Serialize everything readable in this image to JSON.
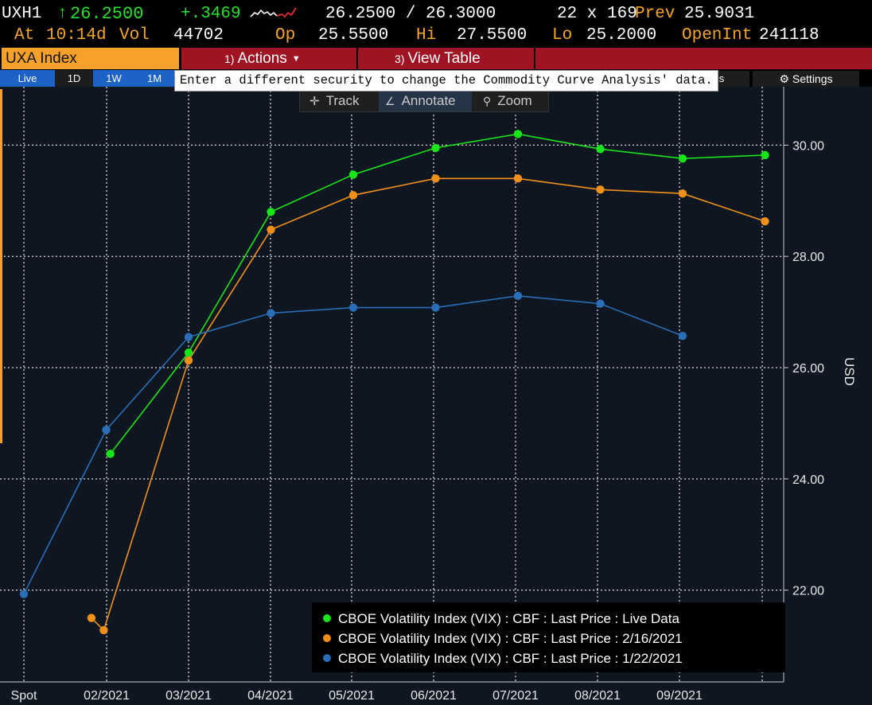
{
  "quote": {
    "ticker": "UXH1",
    "last_arrow": "↑",
    "last_price": "26.2500",
    "change": "+.3469",
    "bid_ask": "26.2500 / 26.3000",
    "size": "22 x 169",
    "prev_label": "Prev",
    "prev_value": "25.9031",
    "at_label": "At",
    "time": "10:14d",
    "vol_label": "Vol",
    "vol_value": "44702",
    "op_label": "Op",
    "op_value": "25.5500",
    "hi_label": "Hi",
    "hi_value": "27.5500",
    "lo_label": "Lo",
    "lo_value": "25.2000",
    "oi_label": "OpenInt",
    "oi_value": "241118"
  },
  "function_bar": {
    "security": "UXA Index",
    "actions_num": "1)",
    "actions_label": "Actions",
    "view_table_num": "3)",
    "view_table_label": "View Table"
  },
  "range_tabs": [
    {
      "label": "Live",
      "active": true
    },
    {
      "label": "1D",
      "active": false
    },
    {
      "label": "1W",
      "active": true
    },
    {
      "label": "1M",
      "active": true
    }
  ],
  "tooltip": "Enter a different security to change the Commodity Curve Analysis' data.",
  "more_tab_label": "ves",
  "settings_label": "Settings",
  "toolbar": {
    "track": "Track",
    "annotate": "Annotate",
    "zoom": "Zoom"
  },
  "colors": {
    "live": "#19e319",
    "feb16": "#f0901b",
    "jan22": "#2a6eb8",
    "accent": "#f7a12a",
    "actions_bar": "#a01323"
  },
  "chart_data": {
    "type": "line",
    "x_categories": [
      "Spot",
      "",
      "02/2021",
      "",
      "03/2021",
      "",
      "04/2021",
      "",
      "05/2021",
      "",
      "06/2021",
      "",
      "07/2021",
      "",
      "08/2021",
      "",
      "09/2021",
      "",
      ""
    ],
    "x_tick_labels": [
      "Spot",
      "02/2021",
      "03/2021",
      "04/2021",
      "05/2021",
      "06/2021",
      "07/2021",
      "08/2021",
      "09/2021"
    ],
    "y_axis": {
      "label": "USD",
      "ticks": [
        "22.00",
        "24.00",
        "26.00",
        "28.00",
        "30.00"
      ],
      "ylim": [
        20.35,
        31.05
      ]
    },
    "grid": true,
    "legend_position": "bottom-right",
    "series": [
      {
        "name": "CBOE Volatility Index (VIX) : CBF : Last Price : Live Data",
        "color_key": "live",
        "points": [
          [
            1.05,
            24.45
          ],
          [
            2.0,
            26.27
          ],
          [
            3.0,
            28.8
          ],
          [
            4.0,
            29.47
          ],
          [
            5.0,
            29.95
          ],
          [
            6.0,
            30.2
          ],
          [
            7.0,
            29.93
          ],
          [
            8.0,
            29.76
          ],
          [
            9.0,
            29.82
          ]
        ]
      },
      {
        "name": "CBOE Volatility Index (VIX) : CBF : Last Price : 2/16/2021",
        "color_key": "feb16",
        "points": [
          [
            0.82,
            21.5
          ],
          [
            0.97,
            21.28
          ],
          [
            2.0,
            26.13
          ],
          [
            3.0,
            28.48
          ],
          [
            4.0,
            29.1
          ],
          [
            5.0,
            29.4
          ],
          [
            6.0,
            29.4
          ],
          [
            7.0,
            29.2
          ],
          [
            8.0,
            29.13
          ],
          [
            9.0,
            28.63
          ]
        ]
      },
      {
        "name": "CBOE Volatility Index (VIX) : CBF : Last Price : 1/22/2021",
        "color_key": "jan22",
        "points": [
          [
            0.0,
            21.93
          ],
          [
            1.0,
            24.88
          ],
          [
            2.0,
            26.55
          ],
          [
            3.0,
            26.98
          ],
          [
            4.0,
            27.08
          ],
          [
            5.0,
            27.08
          ],
          [
            6.0,
            27.29
          ],
          [
            7.0,
            27.15
          ],
          [
            8.0,
            26.57
          ]
        ]
      }
    ]
  }
}
